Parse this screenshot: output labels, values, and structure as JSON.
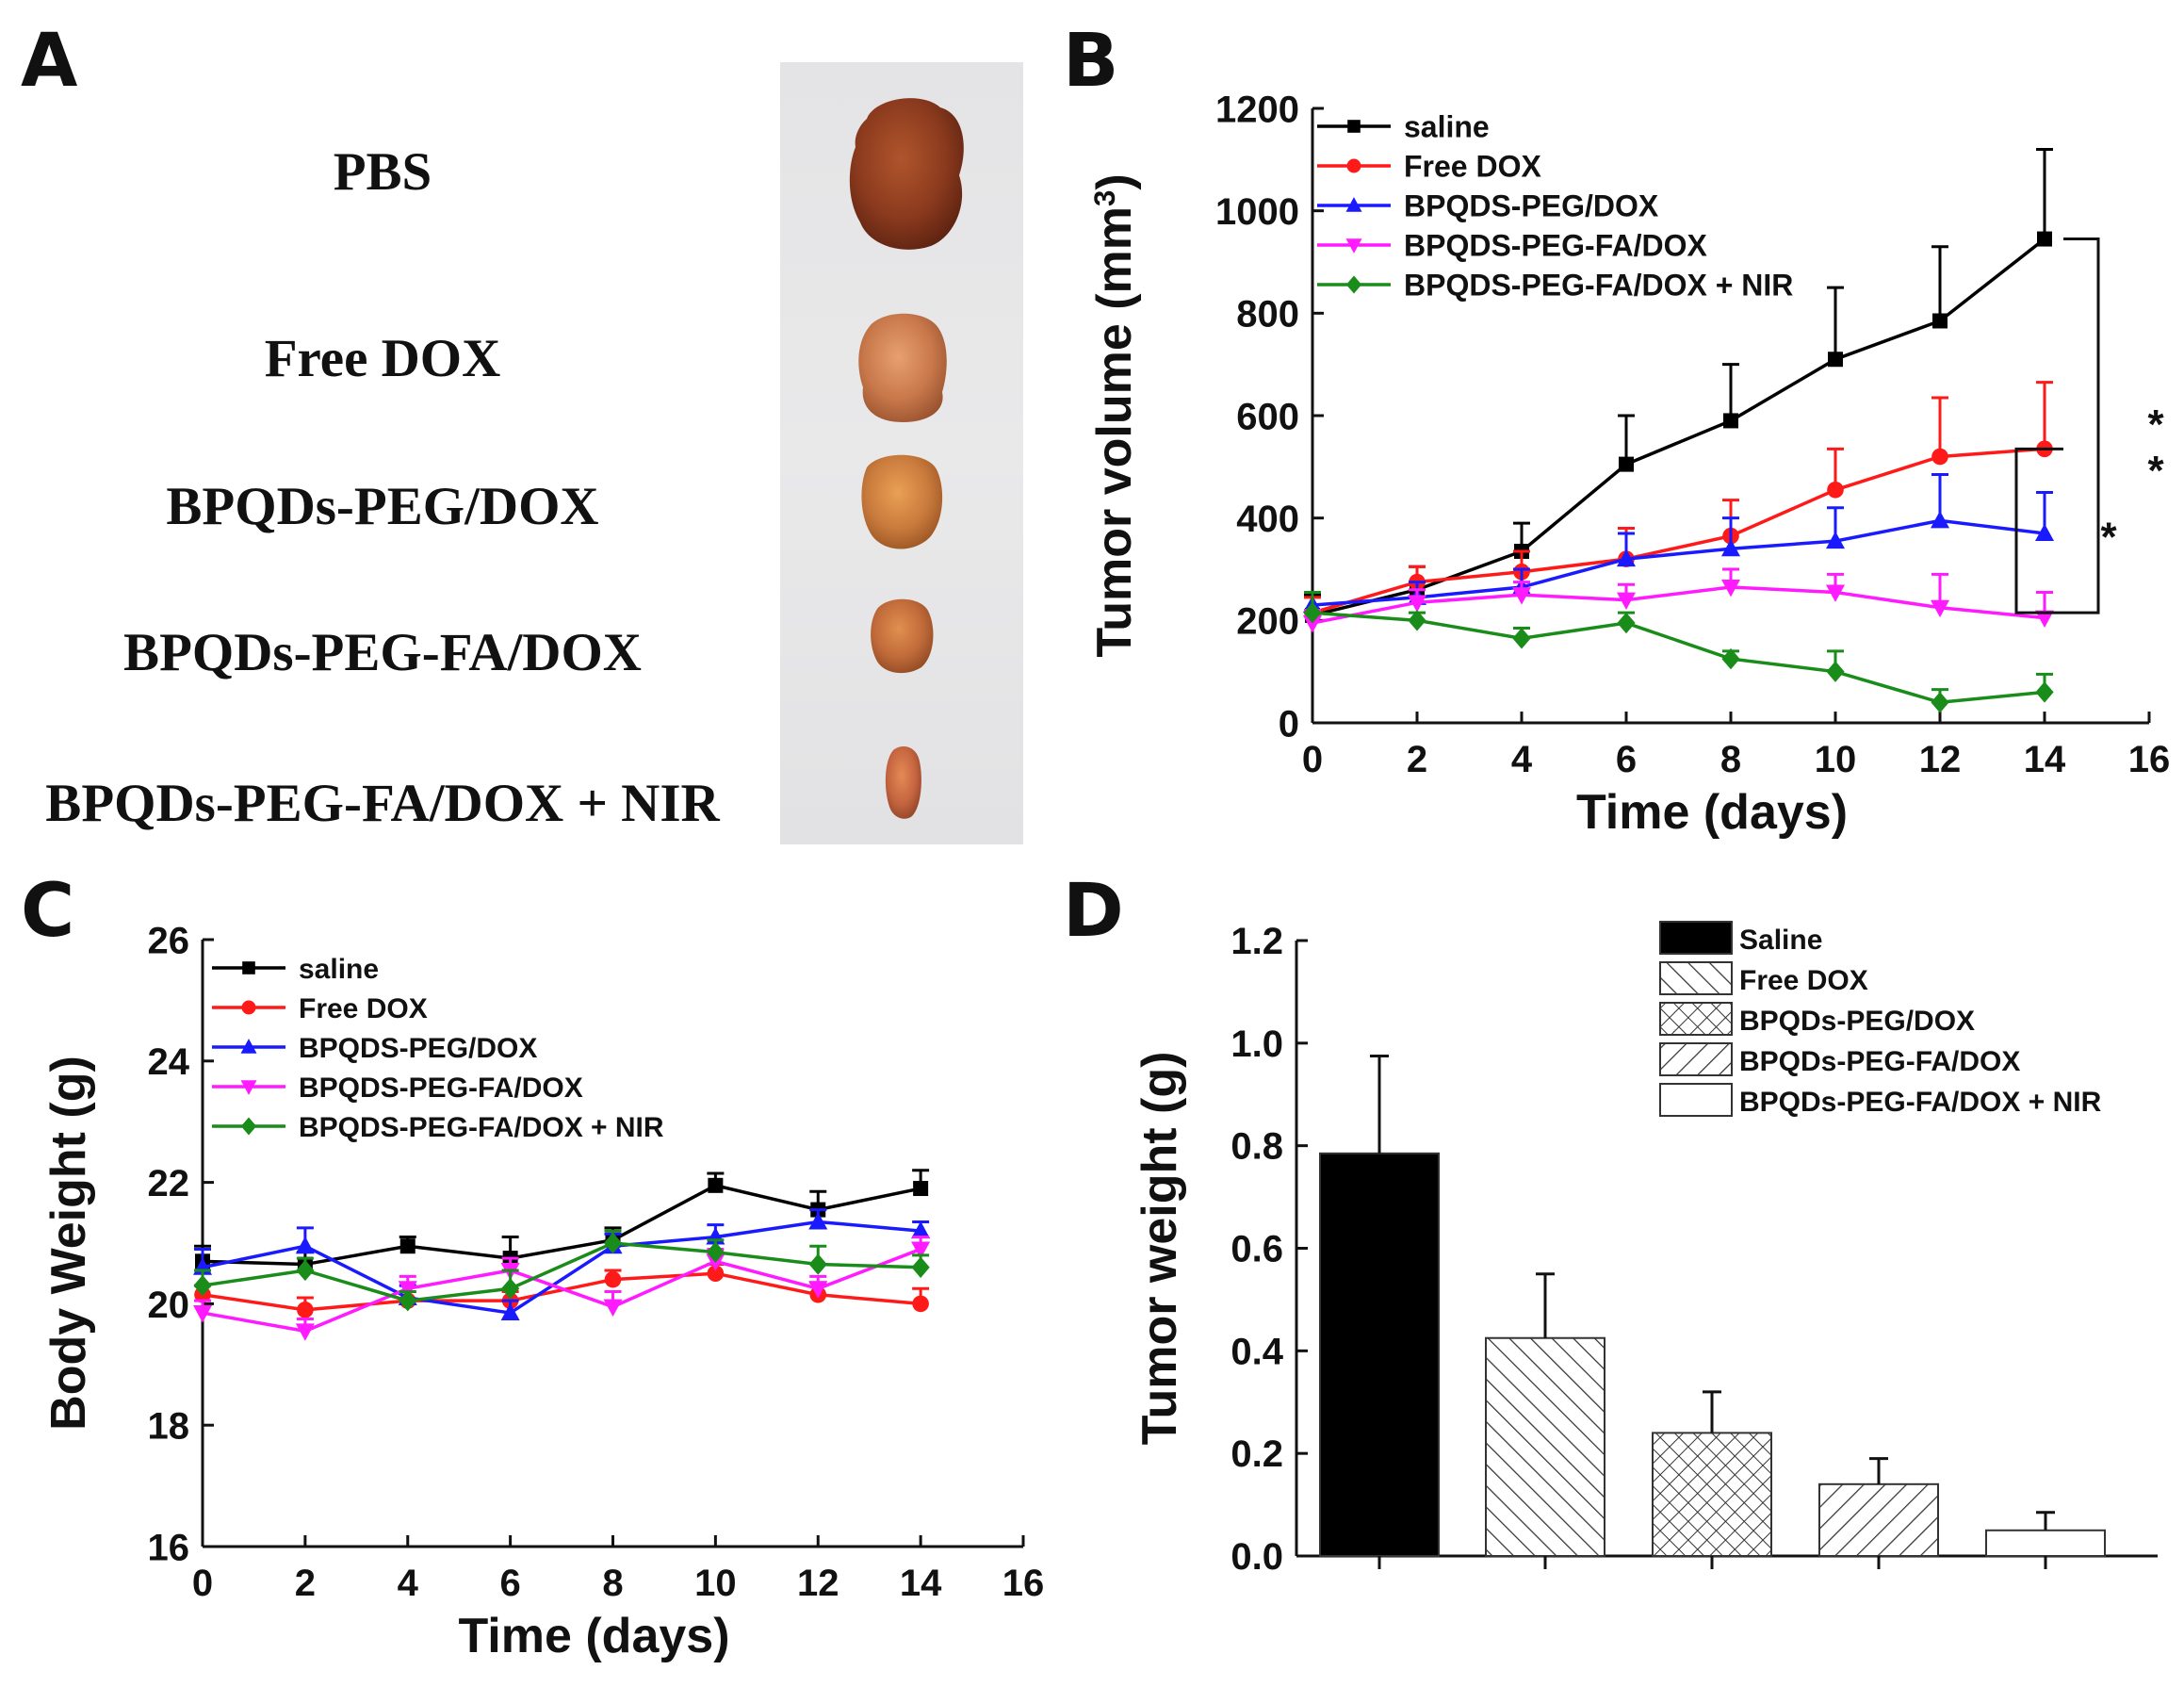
{
  "panels": {
    "A": {
      "letter": "A",
      "groups": [
        "PBS",
        "Free DOX",
        "BPQDs-PEG/DOX",
        "BPQDs-PEG-FA/DOX",
        "BPQDs-PEG-FA/DOX + NIR"
      ],
      "tumor_colors": [
        "#8b3a1e",
        "#c8784a",
        "#c87a3c",
        "#c06a3a",
        "#c56540"
      ]
    },
    "B": {
      "letter": "B"
    },
    "C": {
      "letter": "C"
    },
    "D": {
      "letter": "D"
    }
  },
  "chart_data": [
    {
      "id": "B",
      "type": "line",
      "xlabel": "Time (days)",
      "ylabel": "Tumor volume (mm",
      "ylabel_sup": "3",
      "ylabel_end": ")",
      "xlim": [
        0,
        16
      ],
      "ylim": [
        0,
        1200
      ],
      "xticks": [
        0,
        2,
        4,
        6,
        8,
        10,
        12,
        14,
        16
      ],
      "yticks": [
        0,
        200,
        400,
        600,
        800,
        1000,
        1200
      ],
      "x": [
        0,
        2,
        4,
        6,
        8,
        10,
        12,
        14
      ],
      "series": [
        {
          "name": "saline",
          "color": "#000000",
          "marker": "square",
          "values": [
            210,
            260,
            335,
            505,
            590,
            710,
            785,
            945
          ],
          "errors": [
            40,
            45,
            55,
            95,
            110,
            140,
            145,
            175
          ]
        },
        {
          "name": "Free DOX",
          "color": "#ff1a1a",
          "marker": "circle",
          "values": [
            215,
            275,
            295,
            320,
            365,
            455,
            520,
            535
          ],
          "errors": [
            30,
            30,
            40,
            60,
            70,
            80,
            115,
            130
          ]
        },
        {
          "name": "BPQDS-PEG/DOX",
          "color": "#1a1aff",
          "marker": "triangle-up",
          "values": [
            230,
            245,
            265,
            320,
            340,
            355,
            395,
            370
          ],
          "errors": [
            25,
            30,
            35,
            50,
            60,
            65,
            90,
            80
          ]
        },
        {
          "name": "BPQDS-PEG-FA/DOX",
          "color": "#ff1aff",
          "marker": "triangle-down",
          "values": [
            195,
            235,
            250,
            240,
            265,
            255,
            225,
            205
          ],
          "errors": [
            25,
            25,
            25,
            30,
            35,
            35,
            65,
            50
          ]
        },
        {
          "name": "BPQDS-PEG-FA/DOX + NIR",
          "color": "#1a8c1a",
          "marker": "diamond",
          "values": [
            215,
            200,
            165,
            195,
            125,
            100,
            40,
            60
          ],
          "errors": [
            40,
            15,
            20,
            20,
            15,
            40,
            25,
            35
          ]
        }
      ],
      "significance": [
        "*",
        "*",
        "*"
      ]
    },
    {
      "id": "C",
      "type": "line",
      "xlabel": "Time (days)",
      "ylabel": "Body Weight (g)",
      "xlim": [
        0,
        16
      ],
      "ylim": [
        16,
        26
      ],
      "xticks": [
        0,
        2,
        4,
        6,
        8,
        10,
        12,
        14,
        16
      ],
      "yticks": [
        16,
        18,
        20,
        22,
        24,
        26
      ],
      "x": [
        0,
        2,
        4,
        6,
        8,
        10,
        12,
        14
      ],
      "series": [
        {
          "name": "saline",
          "color": "#000000",
          "marker": "square",
          "values": [
            20.7,
            20.65,
            20.95,
            20.75,
            21.05,
            21.95,
            21.55,
            21.9
          ],
          "errors": [
            0.25,
            0.2,
            0.15,
            0.35,
            0.2,
            0.2,
            0.3,
            0.3
          ]
        },
        {
          "name": "Free DOX",
          "color": "#ff1a1a",
          "marker": "circle",
          "values": [
            20.15,
            19.9,
            20.05,
            20.05,
            20.4,
            20.5,
            20.15,
            20.0
          ],
          "errors": [
            0.15,
            0.2,
            0.15,
            0.15,
            0.15,
            0.15,
            0.2,
            0.25
          ]
        },
        {
          "name": "BPQDS-PEG/DOX",
          "color": "#1a1aff",
          "marker": "triangle-up",
          "values": [
            20.6,
            20.95,
            20.1,
            19.85,
            20.95,
            21.1,
            21.35,
            21.2
          ],
          "errors": [
            0.3,
            0.3,
            0.2,
            0.2,
            0.2,
            0.2,
            0.2,
            0.15
          ]
        },
        {
          "name": "BPQDS-PEG-FA/DOX",
          "color": "#ff1aff",
          "marker": "triangle-down",
          "values": [
            19.85,
            19.55,
            20.25,
            20.55,
            19.95,
            20.7,
            20.25,
            20.9
          ],
          "errors": [
            0.2,
            0.2,
            0.2,
            0.2,
            0.25,
            0.2,
            0.2,
            0.2
          ]
        },
        {
          "name": "BPQDS-PEG-FA/DOX + NIR",
          "color": "#1a8c1a",
          "marker": "diamond",
          "values": [
            20.3,
            20.55,
            20.05,
            20.25,
            21.0,
            20.85,
            20.65,
            20.6
          ],
          "errors": [
            0.25,
            0.2,
            0.15,
            0.3,
            0.2,
            0.2,
            0.3,
            0.2
          ]
        }
      ]
    },
    {
      "id": "D",
      "type": "bar",
      "ylabel": "Tumor weight (g)",
      "ylim": [
        0,
        1.2
      ],
      "yticks": [
        "0.0",
        "0.2",
        "0.4",
        "0.6",
        "0.8",
        "1.0",
        "1.2"
      ],
      "categories": [
        "Saline",
        "Free DOX",
        "BPQDs-PEG/DOX",
        "BPQDs-PEG-FA/DOX",
        "BPQDs-PEG-FA/DOX + NIR"
      ],
      "values": [
        0.785,
        0.425,
        0.24,
        0.14,
        0.05
      ],
      "errors": [
        0.19,
        0.125,
        0.08,
        0.05,
        0.035
      ],
      "fills": [
        "solid",
        "diag",
        "cross",
        "backdiag",
        "empty"
      ]
    }
  ]
}
